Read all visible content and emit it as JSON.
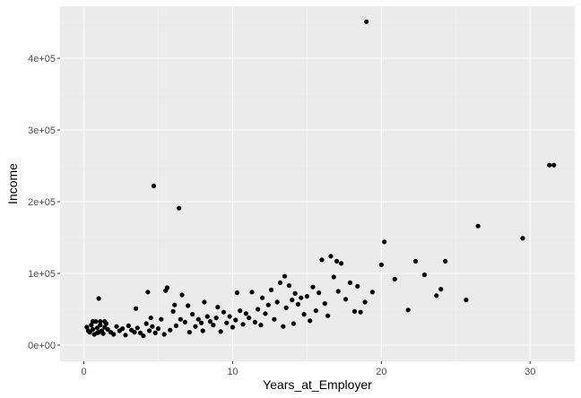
{
  "chart_data": {
    "type": "scatter",
    "xlabel": "Years_at_Employer",
    "ylabel": "Income",
    "xlim": [
      -1.6,
      33.0
    ],
    "ylim": [
      -22500,
      472500
    ],
    "x_ticks": [
      {
        "value": 0,
        "label": "0"
      },
      {
        "value": 10,
        "label": "10"
      },
      {
        "value": 20,
        "label": "20"
      },
      {
        "value": 30,
        "label": "30"
      }
    ],
    "y_ticks": [
      {
        "value": 0,
        "label": "0e+00"
      },
      {
        "value": 100000,
        "label": "1e+05"
      },
      {
        "value": 200000,
        "label": "2e+05"
      },
      {
        "value": 300000,
        "label": "3e+05"
      },
      {
        "value": 400000,
        "label": "4e+05"
      }
    ],
    "grid": true,
    "colors": {
      "panel_background": "#ebebeb",
      "grid_major": "#ffffff",
      "grid_minor": "#f4f4f4",
      "point": "#000000",
      "tick_mark": "#333333",
      "tick_label": "#4d4d4d",
      "axis_title": "#000000"
    },
    "points": [
      {
        "x": 0.2,
        "y": 25000
      },
      {
        "x": 0.3,
        "y": 20000
      },
      {
        "x": 0.4,
        "y": 18000
      },
      {
        "x": 0.5,
        "y": 28000
      },
      {
        "x": 0.6,
        "y": 22000
      },
      {
        "x": 0.7,
        "y": 15000
      },
      {
        "x": 0.8,
        "y": 33000
      },
      {
        "x": 0.9,
        "y": 24000
      },
      {
        "x": 1.0,
        "y": 18000
      },
      {
        "x": 1.0,
        "y": 65000
      },
      {
        "x": 1.1,
        "y": 28000
      },
      {
        "x": 1.2,
        "y": 20000
      },
      {
        "x": 1.3,
        "y": 16000
      },
      {
        "x": 1.4,
        "y": 25000
      },
      {
        "x": 1.5,
        "y": 30000
      },
      {
        "x": 1.6,
        "y": 22000
      },
      {
        "x": 1.8,
        "y": 18000
      },
      {
        "x": 2.0,
        "y": 15000
      },
      {
        "x": 0.6,
        "y": 33000
      },
      {
        "x": 1.1,
        "y": 33000
      },
      {
        "x": 1.4,
        "y": 33000
      },
      {
        "x": 0.9,
        "y": 17000
      },
      {
        "x": 2.2,
        "y": 26000
      },
      {
        "x": 2.4,
        "y": 20000
      },
      {
        "x": 2.6,
        "y": 23000
      },
      {
        "x": 2.8,
        "y": 14000
      },
      {
        "x": 3.0,
        "y": 27000
      },
      {
        "x": 3.2,
        "y": 21000
      },
      {
        "x": 3.4,
        "y": 18000
      },
      {
        "x": 3.5,
        "y": 51000
      },
      {
        "x": 3.6,
        "y": 24000
      },
      {
        "x": 3.8,
        "y": 17000
      },
      {
        "x": 4.0,
        "y": 13000
      },
      {
        "x": 4.2,
        "y": 30000
      },
      {
        "x": 4.3,
        "y": 74000
      },
      {
        "x": 4.4,
        "y": 20000
      },
      {
        "x": 4.5,
        "y": 38000
      },
      {
        "x": 4.6,
        "y": 26000
      },
      {
        "x": 4.7,
        "y": 222000
      },
      {
        "x": 4.8,
        "y": 17000
      },
      {
        "x": 5.0,
        "y": 23000
      },
      {
        "x": 5.2,
        "y": 36000
      },
      {
        "x": 5.4,
        "y": 15000
      },
      {
        "x": 5.5,
        "y": 76000
      },
      {
        "x": 5.6,
        "y": 80000
      },
      {
        "x": 5.8,
        "y": 21000
      },
      {
        "x": 6.0,
        "y": 47000
      },
      {
        "x": 6.1,
        "y": 56000
      },
      {
        "x": 6.2,
        "y": 27000
      },
      {
        "x": 6.4,
        "y": 191000
      },
      {
        "x": 6.5,
        "y": 36000
      },
      {
        "x": 6.6,
        "y": 70000
      },
      {
        "x": 6.8,
        "y": 32000
      },
      {
        "x": 7.0,
        "y": 55000
      },
      {
        "x": 7.1,
        "y": 18000
      },
      {
        "x": 7.3,
        "y": 43000
      },
      {
        "x": 7.5,
        "y": 26000
      },
      {
        "x": 7.7,
        "y": 36000
      },
      {
        "x": 7.9,
        "y": 31000
      },
      {
        "x": 8.0,
        "y": 20000
      },
      {
        "x": 8.1,
        "y": 60000
      },
      {
        "x": 8.3,
        "y": 40000
      },
      {
        "x": 8.5,
        "y": 33000
      },
      {
        "x": 8.7,
        "y": 28000
      },
      {
        "x": 8.9,
        "y": 38000
      },
      {
        "x": 9.0,
        "y": 53000
      },
      {
        "x": 9.2,
        "y": 19000
      },
      {
        "x": 9.4,
        "y": 46000
      },
      {
        "x": 9.6,
        "y": 31000
      },
      {
        "x": 9.8,
        "y": 40000
      },
      {
        "x": 10.0,
        "y": 25000
      },
      {
        "x": 10.2,
        "y": 35000
      },
      {
        "x": 10.3,
        "y": 73000
      },
      {
        "x": 10.5,
        "y": 48000
      },
      {
        "x": 10.7,
        "y": 29000
      },
      {
        "x": 10.9,
        "y": 44000
      },
      {
        "x": 11.1,
        "y": 38000
      },
      {
        "x": 11.3,
        "y": 74000
      },
      {
        "x": 11.5,
        "y": 32000
      },
      {
        "x": 11.7,
        "y": 50000
      },
      {
        "x": 11.9,
        "y": 28000
      },
      {
        "x": 12.0,
        "y": 66000
      },
      {
        "x": 12.2,
        "y": 44000
      },
      {
        "x": 12.4,
        "y": 56000
      },
      {
        "x": 12.6,
        "y": 77000
      },
      {
        "x": 12.8,
        "y": 36000
      },
      {
        "x": 13.0,
        "y": 60000
      },
      {
        "x": 13.2,
        "y": 87000
      },
      {
        "x": 13.4,
        "y": 26000
      },
      {
        "x": 13.5,
        "y": 96000
      },
      {
        "x": 13.6,
        "y": 52000
      },
      {
        "x": 13.8,
        "y": 83000
      },
      {
        "x": 14.0,
        "y": 63000
      },
      {
        "x": 14.1,
        "y": 30000
      },
      {
        "x": 14.2,
        "y": 72000
      },
      {
        "x": 14.4,
        "y": 57000
      },
      {
        "x": 14.6,
        "y": 66000
      },
      {
        "x": 14.8,
        "y": 43000
      },
      {
        "x": 15.0,
        "y": 68000
      },
      {
        "x": 15.2,
        "y": 34000
      },
      {
        "x": 15.4,
        "y": 81000
      },
      {
        "x": 15.6,
        "y": 48000
      },
      {
        "x": 15.8,
        "y": 73000
      },
      {
        "x": 16.0,
        "y": 119000
      },
      {
        "x": 16.2,
        "y": 58000
      },
      {
        "x": 16.4,
        "y": 41000
      },
      {
        "x": 16.6,
        "y": 124000
      },
      {
        "x": 16.8,
        "y": 95000
      },
      {
        "x": 17.0,
        "y": 117000
      },
      {
        "x": 17.1,
        "y": 75000
      },
      {
        "x": 17.3,
        "y": 114000
      },
      {
        "x": 17.6,
        "y": 64000
      },
      {
        "x": 17.9,
        "y": 87000
      },
      {
        "x": 18.2,
        "y": 47000
      },
      {
        "x": 18.4,
        "y": 82000
      },
      {
        "x": 18.6,
        "y": 46000
      },
      {
        "x": 18.9,
        "y": 60000
      },
      {
        "x": 19.0,
        "y": 451000
      },
      {
        "x": 19.4,
        "y": 74000
      },
      {
        "x": 20.0,
        "y": 112000
      },
      {
        "x": 20.2,
        "y": 144000
      },
      {
        "x": 20.9,
        "y": 92000
      },
      {
        "x": 21.8,
        "y": 49000
      },
      {
        "x": 22.3,
        "y": 117000
      },
      {
        "x": 22.9,
        "y": 98000
      },
      {
        "x": 23.7,
        "y": 69000
      },
      {
        "x": 24.0,
        "y": 78000
      },
      {
        "x": 24.3,
        "y": 117000
      },
      {
        "x": 25.7,
        "y": 63000
      },
      {
        "x": 26.5,
        "y": 166000
      },
      {
        "x": 29.5,
        "y": 149000
      },
      {
        "x": 31.3,
        "y": 251000
      },
      {
        "x": 31.6,
        "y": 251000
      }
    ]
  }
}
